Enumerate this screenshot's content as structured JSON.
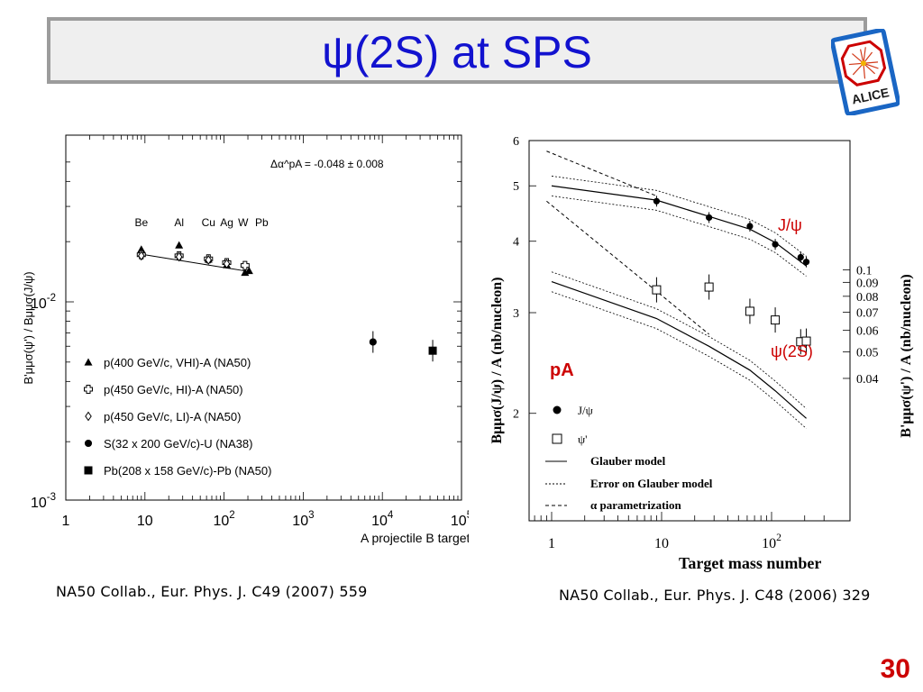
{
  "slide": {
    "title": "ψ(2S) at SPS",
    "page_number": "30",
    "logo_text": "ALICE",
    "accent_color": "#1212cf",
    "page_number_color": "#cc0000"
  },
  "left_figure": {
    "caption": "NA50 Collab., Eur. Phys. J. C49 (2007) 559",
    "annotation": "Δα^pA = -0.048 ± 0.008",
    "target_labels": [
      "Be",
      "Al",
      "Cu",
      "Ag",
      "W",
      "Pb"
    ],
    "y_axis_label": "B'μμσ(ψ') / Bμμσ(J/ψ)",
    "x_axis_label": "A projectile B target",
    "x_ticks": [
      "1",
      "10",
      "10^2",
      "10^3",
      "10^4",
      "10^5"
    ],
    "y_ticks": [
      "10^-2",
      "10^-3"
    ]
  },
  "right_figure": {
    "caption": "NA50 Collab., Eur. Phys. J. C48 (2006) 329",
    "label_jpsi": "J/ψ",
    "label_psi2s": "ψ(2S)",
    "label_pa": "pA",
    "left_axis_label": "Bμμσ(J/ψ) / A (nb/nucleon)",
    "right_axis_label": "B'μμσ(ψ') / A (nb/nucleon)",
    "x_axis_label": "Target mass number",
    "x_ticks": [
      "1",
      "10",
      "10^2"
    ],
    "left_y_ticks": [
      "2",
      "3",
      "4",
      "5",
      "6"
    ],
    "right_y_ticks": [
      "0.04",
      "0.05",
      "0.06",
      "0.07",
      "0.08",
      "0.09",
      "0.1"
    ]
  },
  "chart_data": [
    {
      "type": "scatter",
      "title": "",
      "xlabel": "A projectile B target",
      "ylabel": "B'μμσ(ψ') / Bμμσ(J/ψ)",
      "x_scale": "log",
      "y_scale": "log",
      "xlim": [
        1,
        100000
      ],
      "ylim": [
        0.001,
        0.06
      ],
      "legend_position": "bottom-left",
      "fit_line": {
        "x": [
          9,
          200
        ],
        "y": [
          0.0173,
          0.0142
        ]
      },
      "series": [
        {
          "name": "p(400 GeV/c, VHI)-A (NA50)",
          "marker": "triangle",
          "x": [
            9,
            27,
            63.5,
            108,
            184,
            207
          ],
          "y": [
            0.0183,
            0.0192,
            0.0163,
            0.0153,
            0.014,
            0.0143
          ]
        },
        {
          "name": "p(450 GeV/c, HI)-A (NA50)",
          "marker": "cross",
          "x": [
            9,
            27,
            63.5,
            108,
            184
          ],
          "y": [
            0.0172,
            0.017,
            0.0164,
            0.0157,
            0.0152
          ]
        },
        {
          "name": "p(450 GeV/c, LI)-A (NA50)",
          "marker": "diamond",
          "x": [
            9,
            27,
            63.5,
            108
          ],
          "y": [
            0.017,
            0.0168,
            0.0162,
            0.0155
          ]
        },
        {
          "name": "S(32 x 200 GeV/c)-U (NA38)",
          "marker": "circle",
          "x": [
            7616
          ],
          "y": [
            0.0063
          ]
        },
        {
          "name": "Pb(208 x 158 GeV/c)-Pb (NA50)",
          "marker": "square",
          "x": [
            43264
          ],
          "y": [
            0.0057
          ]
        }
      ]
    },
    {
      "type": "scatter",
      "title": "",
      "xlabel": "Target mass number",
      "ylabel": "Bμμσ(J/ψ) / A (nb/nucleon)",
      "y2label": "B'μμσ(ψ') / A (nb/nucleon)",
      "x_scale": "log",
      "y_scale": "log",
      "xlim": [
        0.7,
        300
      ],
      "ylim": [
        1.75,
        6
      ],
      "y2lim": [
        0.04,
        0.1
      ],
      "legend_position": "bottom-left",
      "series": [
        {
          "name": "J/ψ",
          "marker": "filled-circle",
          "axis": "left",
          "x": [
            9,
            27,
            63.5,
            108,
            184,
            207
          ],
          "y": [
            4.7,
            4.4,
            4.25,
            3.95,
            3.75,
            3.68
          ]
        },
        {
          "name": "ψ'",
          "marker": "open-square",
          "axis": "right",
          "x": [
            9,
            27,
            63.5,
            108,
            184,
            207
          ],
          "y": [
            0.0845,
            0.0865,
            0.0705,
            0.0655,
            0.0545,
            0.0548
          ]
        }
      ],
      "curves": [
        {
          "name": "Glauber model",
          "style": "solid",
          "x": [
            1,
            9,
            27,
            63.5,
            108,
            207
          ],
          "y": [
            5.0,
            4.72,
            4.42,
            4.2,
            3.98,
            3.62
          ]
        },
        {
          "name": "Glauber model",
          "style": "solid",
          "x": [
            1,
            9,
            27,
            63.5,
            108,
            207
          ],
          "y": [
            3.4,
            2.93,
            2.62,
            2.38,
            2.19,
            1.96
          ]
        }
      ],
      "legend": [
        "J/ψ",
        "ψ'",
        "Glauber model",
        "Error on Glauber model",
        "α parametrization"
      ]
    }
  ]
}
